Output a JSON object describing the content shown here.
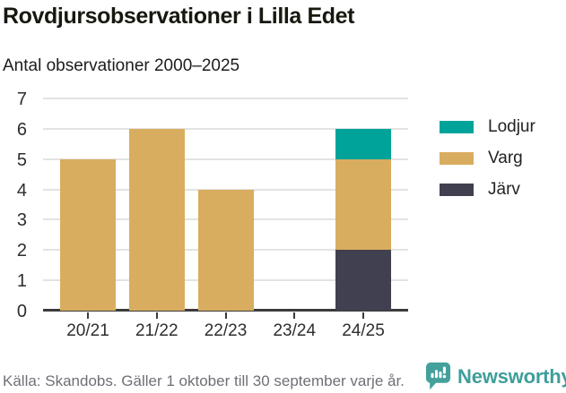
{
  "title": "Rovdjursobservationer i Lilla Edet",
  "subtitle": "Antal observationer 2000–2025",
  "source": "Källa: Skandobs. Gäller 1 oktober till 30 september varje år.",
  "branding": {
    "name": "Newsworthy"
  },
  "colors": {
    "lodjur": "#00a39a",
    "varg": "#d9ad5f",
    "jarv": "#414050",
    "brand_teal": "#44a09c",
    "grid": "#e3e3e3",
    "axis": "#3b3b3b",
    "title_text": "#16190f",
    "muted_text": "#6f6f78"
  },
  "legend": [
    {
      "label": "Lodjur",
      "color": "#00a39a"
    },
    {
      "label": "Varg",
      "color": "#d9ad5f"
    },
    {
      "label": "Järv",
      "color": "#414050"
    }
  ],
  "chart_data": {
    "type": "bar",
    "stacked": true,
    "title": "Rovdjursobservationer i Lilla Edet",
    "subtitle": "Antal observationer 2000–2025",
    "categories": [
      "20/21",
      "21/22",
      "22/23",
      "23/24",
      "24/25"
    ],
    "series": [
      {
        "name": "Järv",
        "color": "#414050",
        "values": [
          0,
          0,
          0,
          0,
          2
        ]
      },
      {
        "name": "Varg",
        "color": "#d9ad5f",
        "values": [
          5,
          6,
          4,
          0,
          3
        ]
      },
      {
        "name": "Lodjur",
        "color": "#00a39a",
        "values": [
          0,
          0,
          0,
          0,
          1
        ]
      }
    ],
    "totals": [
      5,
      6,
      4,
      0,
      6
    ],
    "yticks": [
      0,
      1,
      2,
      3,
      4,
      5,
      6,
      7
    ],
    "ylim": [
      0,
      7
    ],
    "xlabel": "",
    "ylabel": "",
    "grid": true,
    "legend_position": "right"
  }
}
